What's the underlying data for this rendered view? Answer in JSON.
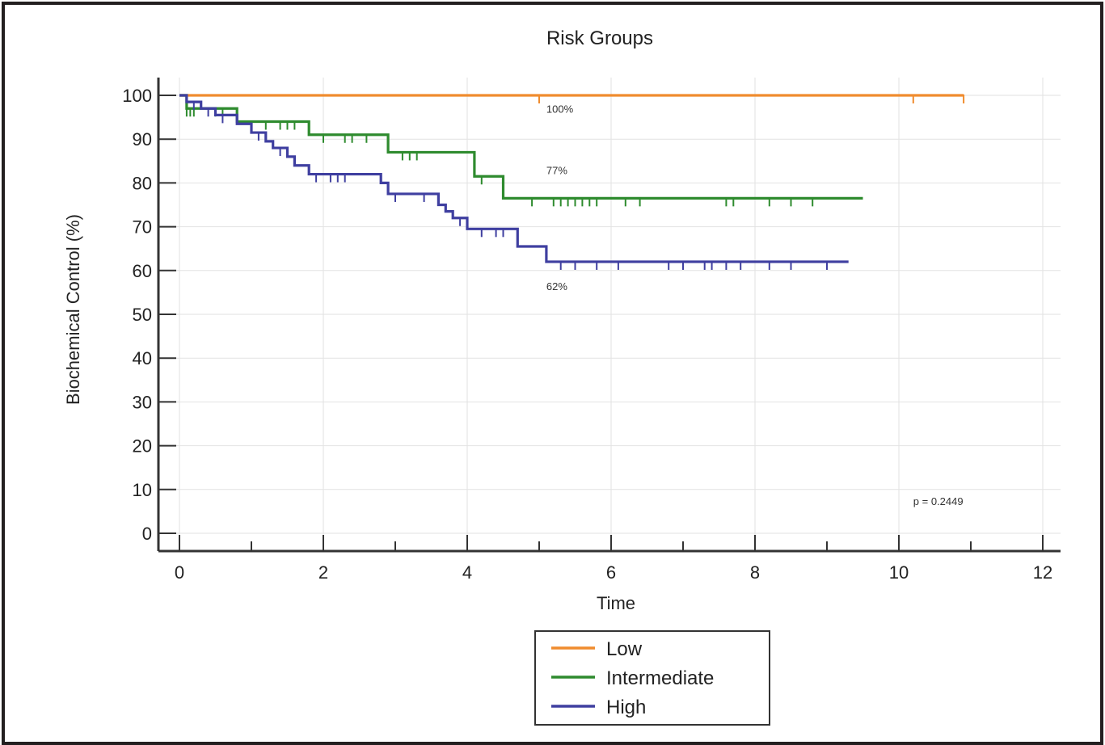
{
  "chart_data": {
    "type": "line",
    "title": "Risk Groups",
    "xlabel": "Time",
    "ylabel": "Biochemical Control (%)",
    "xlim": [
      0,
      12
    ],
    "ylim": [
      0,
      100
    ],
    "xticks": [
      0,
      2,
      4,
      6,
      8,
      10,
      12
    ],
    "yticks": [
      0,
      10,
      20,
      30,
      40,
      50,
      60,
      70,
      80,
      90,
      100
    ],
    "grid": true,
    "legend_position": "bottom-center",
    "series": [
      {
        "name": "Low",
        "color": "#f08c2e",
        "steps": [
          [
            0,
            100
          ],
          [
            10.9,
            100
          ]
        ],
        "censored": [
          5.0,
          10.2,
          10.9
        ]
      },
      {
        "name": "Intermediate",
        "color": "#2e8b2e",
        "steps": [
          [
            0,
            100
          ],
          [
            0.1,
            97
          ],
          [
            0.8,
            94
          ],
          [
            1.8,
            91
          ],
          [
            2.9,
            87
          ],
          [
            4.1,
            81.5
          ],
          [
            4.5,
            76.5
          ],
          [
            9.5,
            76.5
          ]
        ],
        "censored": [
          0.1,
          0.15,
          0.2,
          0.5,
          0.6,
          1.2,
          1.4,
          1.5,
          1.6,
          2.0,
          2.3,
          2.4,
          2.6,
          3.1,
          3.2,
          3.3,
          4.2,
          4.9,
          5.2,
          5.3,
          5.4,
          5.5,
          5.6,
          5.7,
          5.8,
          6.2,
          6.4,
          7.6,
          7.7,
          8.2,
          8.5,
          8.8
        ]
      },
      {
        "name": "High",
        "color": "#3f3fa0",
        "steps": [
          [
            0,
            100
          ],
          [
            0.1,
            98.5
          ],
          [
            0.3,
            97
          ],
          [
            0.5,
            95.5
          ],
          [
            0.8,
            93.5
          ],
          [
            1.0,
            91.5
          ],
          [
            1.2,
            89.5
          ],
          [
            1.3,
            88
          ],
          [
            1.5,
            86
          ],
          [
            1.6,
            84
          ],
          [
            1.8,
            82
          ],
          [
            2.8,
            80
          ],
          [
            2.9,
            77.5
          ],
          [
            3.6,
            75
          ],
          [
            3.7,
            73.5
          ],
          [
            3.8,
            72
          ],
          [
            4.0,
            69.5
          ],
          [
            4.7,
            65.5
          ],
          [
            5.1,
            62
          ],
          [
            9.3,
            62
          ]
        ],
        "censored": [
          0.2,
          0.4,
          0.6,
          1.1,
          1.4,
          1.9,
          2.1,
          2.2,
          2.3,
          3.0,
          3.4,
          3.9,
          4.2,
          4.4,
          4.5,
          5.3,
          5.5,
          5.8,
          6.1,
          6.8,
          7.0,
          7.3,
          7.4,
          7.6,
          7.8,
          8.2,
          8.5,
          9.0
        ]
      }
    ],
    "annotations": [
      {
        "text": "100%",
        "x": 5.1,
        "y": 96
      },
      {
        "text": "77%",
        "x": 5.1,
        "y": 82
      },
      {
        "text": "62%",
        "x": 5.1,
        "y": 55.5
      },
      {
        "text": "p = 0.2449",
        "x": 10.2,
        "y": 6.5
      }
    ]
  }
}
